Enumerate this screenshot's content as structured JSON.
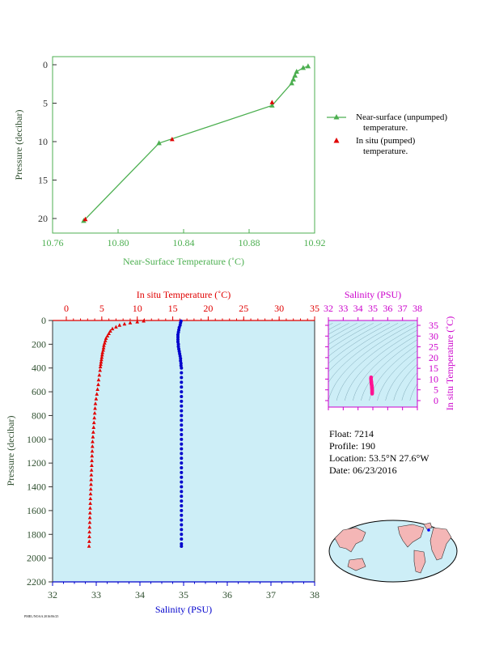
{
  "colors": {
    "green": "#4caf50",
    "red": "#e00000",
    "blue": "#0000cc",
    "magenta": "#cc00cc",
    "pink": "#ff1493",
    "panel_bg": "#cdeef7",
    "axis_dark": "#333333",
    "label_dark": "#2f4f2f"
  },
  "top_chart": {
    "xlabel": "Near-Surface Temperature (˚C)",
    "ylabel": "Pressure (decibar)",
    "xlim": [
      10.76,
      10.92
    ],
    "ylim": [
      0,
      22
    ],
    "xticks": [
      "10.76",
      "10.80",
      "10.84",
      "10.88",
      "10.92"
    ],
    "xtick_values": [
      10.76,
      10.8,
      10.84,
      10.88,
      10.92
    ],
    "yticks": [
      "0",
      "5",
      "10",
      "15",
      "20"
    ],
    "ytick_values": [
      0,
      5,
      10,
      15,
      20
    ],
    "legend": {
      "near_line1": "Near-surface (unpumped)",
      "near_line2": "temperature.",
      "insitu_line1": "In situ (pumped)",
      "insitu_line2": "temperature."
    }
  },
  "bottom_chart": {
    "top_xlabel": "In situ Temperature (˚C)",
    "top_xticks": [
      "0",
      "5",
      "10",
      "15",
      "20",
      "25",
      "30",
      "35"
    ],
    "top_xtick_values": [
      0,
      5,
      10,
      15,
      20,
      25,
      30,
      35
    ],
    "bottom_xlabel": "Salinity (PSU)",
    "bottom_xticks": [
      "32",
      "33",
      "34",
      "35",
      "36",
      "37",
      "38"
    ],
    "bottom_xtick_values": [
      32,
      33,
      34,
      35,
      36,
      37,
      38
    ],
    "ylabel": "Pressure (decibar)",
    "yticks": [
      "0",
      "200",
      "400",
      "600",
      "800",
      "1000",
      "1200",
      "1400",
      "1600",
      "1800",
      "2000",
      "2200"
    ],
    "ytick_values": [
      0,
      200,
      400,
      600,
      800,
      1000,
      1200,
      1400,
      1600,
      1800,
      2000,
      2200
    ]
  },
  "ts_chart": {
    "xlabel": "Salinity (PSU)",
    "xticks": [
      "32",
      "33",
      "34",
      "35",
      "36",
      "37",
      "38"
    ],
    "xtick_values": [
      32,
      33,
      34,
      35,
      36,
      37,
      38
    ],
    "ylabel": "In situ Temperature (˚C)",
    "yticks": [
      "0",
      "5",
      "10",
      "15",
      "20",
      "25",
      "30",
      "35"
    ],
    "ytick_values": [
      0,
      5,
      10,
      15,
      20,
      25,
      30,
      35
    ]
  },
  "info": {
    "float": "Float:  7214",
    "profile": "Profile:  190",
    "location": "Location:  53.5°N  27.6°W",
    "date": "Date:  06/23/2016"
  },
  "footer_text": "PMEL/NOAA 2016/06/25",
  "chart_data": [
    {
      "type": "line",
      "series": [
        {
          "name": "Near-surface (unpumped) temperature.",
          "points": [
            [
              10.916,
              0.2
            ],
            [
              10.913,
              0.4
            ],
            [
              10.909,
              0.9
            ],
            [
              10.908,
              1.4
            ],
            [
              10.907,
              1.9
            ],
            [
              10.906,
              2.4
            ],
            [
              10.894,
              5.3
            ],
            [
              10.825,
              10.2
            ],
            [
              10.779,
              20.3
            ]
          ]
        },
        {
          "name": "In situ (pumped) temperature.",
          "points": [
            [
              10.894,
              4.9
            ],
            [
              10.833,
              9.7
            ],
            [
              10.78,
              20.1
            ]
          ]
        }
      ]
    },
    {
      "type": "scatter",
      "series": [
        {
          "name": "In situ Temperature (˚C)",
          "points": [
            [
              10.9,
              5
            ],
            [
              10.0,
              12
            ],
            [
              9.0,
              20
            ],
            [
              8.2,
              30
            ],
            [
              7.5,
              40
            ],
            [
              7.0,
              55
            ],
            [
              6.5,
              70
            ],
            [
              6.2,
              90
            ],
            [
              6.0,
              110
            ],
            [
              5.8,
              130
            ],
            [
              5.6,
              150
            ],
            [
              5.5,
              170
            ],
            [
              5.4,
              190
            ],
            [
              5.3,
              210
            ],
            [
              5.25,
              230
            ],
            [
              5.2,
              250
            ],
            [
              5.1,
              270
            ],
            [
              5.05,
              290
            ],
            [
              5.0,
              310
            ],
            [
              4.95,
              330
            ],
            [
              4.9,
              350
            ],
            [
              4.85,
              370
            ],
            [
              4.8,
              390
            ],
            [
              4.75,
              420
            ],
            [
              4.65,
              460
            ],
            [
              4.55,
              500
            ],
            [
              4.5,
              540
            ],
            [
              4.4,
              580
            ],
            [
              4.3,
              620
            ],
            [
              4.2,
              660
            ],
            [
              4.1,
              700
            ],
            [
              4.05,
              740
            ],
            [
              4.0,
              780
            ],
            [
              3.95,
              820
            ],
            [
              3.9,
              860
            ],
            [
              3.85,
              900
            ],
            [
              3.8,
              940
            ],
            [
              3.75,
              980
            ],
            [
              3.7,
              1020
            ],
            [
              3.68,
              1060
            ],
            [
              3.65,
              1100
            ],
            [
              3.62,
              1140
            ],
            [
              3.6,
              1180
            ],
            [
              3.58,
              1220
            ],
            [
              3.55,
              1260
            ],
            [
              3.52,
              1300
            ],
            [
              3.5,
              1340
            ],
            [
              3.48,
              1380
            ],
            [
              3.45,
              1420
            ],
            [
              3.42,
              1460
            ],
            [
              3.4,
              1500
            ],
            [
              3.38,
              1540
            ],
            [
              3.36,
              1580
            ],
            [
              3.34,
              1620
            ],
            [
              3.32,
              1660
            ],
            [
              3.3,
              1700
            ],
            [
              3.28,
              1740
            ],
            [
              3.26,
              1780
            ],
            [
              3.25,
              1820
            ],
            [
              3.23,
              1860
            ],
            [
              3.2,
              1900
            ]
          ]
        },
        {
          "name": "Salinity (PSU)",
          "points": [
            [
              34.94,
              5
            ],
            [
              34.93,
              20
            ],
            [
              34.92,
              40
            ],
            [
              34.9,
              60
            ],
            [
              34.89,
              80
            ],
            [
              34.88,
              100
            ],
            [
              34.87,
              120
            ],
            [
              34.87,
              140
            ],
            [
              34.87,
              160
            ],
            [
              34.87,
              180
            ],
            [
              34.88,
              200
            ],
            [
              34.88,
              220
            ],
            [
              34.89,
              240
            ],
            [
              34.9,
              260
            ],
            [
              34.91,
              280
            ],
            [
              34.92,
              300
            ],
            [
              34.93,
              320
            ],
            [
              34.93,
              340
            ],
            [
              34.94,
              360
            ],
            [
              34.94,
              380
            ],
            [
              34.95,
              400
            ],
            [
              34.95,
              440
            ],
            [
              34.95,
              480
            ],
            [
              34.95,
              520
            ],
            [
              34.95,
              560
            ],
            [
              34.95,
              600
            ],
            [
              34.95,
              640
            ],
            [
              34.95,
              680
            ],
            [
              34.95,
              720
            ],
            [
              34.95,
              760
            ],
            [
              34.95,
              800
            ],
            [
              34.95,
              840
            ],
            [
              34.95,
              880
            ],
            [
              34.95,
              920
            ],
            [
              34.95,
              960
            ],
            [
              34.95,
              1000
            ],
            [
              34.95,
              1040
            ],
            [
              34.95,
              1080
            ],
            [
              34.95,
              1120
            ],
            [
              34.95,
              1160
            ],
            [
              34.95,
              1200
            ],
            [
              34.95,
              1240
            ],
            [
              34.95,
              1280
            ],
            [
              34.95,
              1320
            ],
            [
              34.95,
              1360
            ],
            [
              34.95,
              1400
            ],
            [
              34.95,
              1440
            ],
            [
              34.95,
              1480
            ],
            [
              34.95,
              1520
            ],
            [
              34.95,
              1560
            ],
            [
              34.95,
              1600
            ],
            [
              34.95,
              1640
            ],
            [
              34.95,
              1680
            ],
            [
              34.95,
              1720
            ],
            [
              34.95,
              1760
            ],
            [
              34.95,
              1800
            ],
            [
              34.95,
              1840
            ],
            [
              34.95,
              1880
            ],
            [
              34.95,
              1900
            ]
          ]
        }
      ]
    },
    {
      "type": "scatter",
      "series": [
        {
          "name": "T-S",
          "points": [
            [
              34.88,
              10.8
            ],
            [
              34.87,
              10.2
            ],
            [
              34.88,
              9.6
            ],
            [
              34.89,
              9.0
            ],
            [
              34.9,
              8.5
            ],
            [
              34.9,
              8.0
            ],
            [
              34.91,
              7.6
            ],
            [
              34.92,
              7.2
            ],
            [
              34.93,
              6.8
            ],
            [
              34.93,
              6.4
            ],
            [
              34.94,
              6.0
            ],
            [
              34.94,
              5.6
            ],
            [
              34.95,
              5.2
            ],
            [
              34.95,
              4.8
            ],
            [
              34.95,
              4.4
            ],
            [
              34.95,
              4.0
            ],
            [
              34.95,
              3.6
            ],
            [
              34.95,
              3.2
            ]
          ]
        }
      ]
    }
  ]
}
